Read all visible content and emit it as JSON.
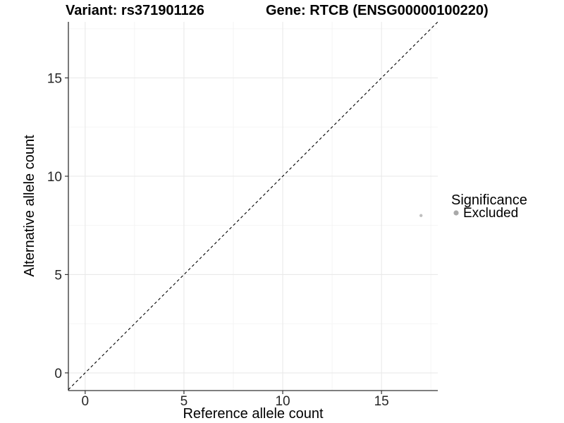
{
  "chart_data": {
    "type": "scatter",
    "title_left": "Variant: rs371901126",
    "title_right": "Gene: RTCB (ENSG00000100220)",
    "xlabel": "Reference allele count",
    "ylabel": "Alternative allele count",
    "xlim": [
      -0.85,
      17.85
    ],
    "ylim": [
      -0.9,
      17.85
    ],
    "x_ticks": [
      0,
      5,
      10,
      15
    ],
    "y_ticks": [
      0,
      5,
      10,
      15
    ],
    "x_minor_ticks": [
      2.5,
      7.5,
      12.5,
      17.5
    ],
    "y_minor_ticks": [
      2.5,
      7.5,
      12.5,
      17.5
    ],
    "grid": true,
    "abline": {
      "slope": 1,
      "intercept": 0,
      "linetype": "dashed",
      "color": "#000000"
    },
    "series": [
      {
        "name": "Excluded",
        "color": "#bfbfbf",
        "points": [
          {
            "x": 17,
            "y": 8
          }
        ]
      }
    ],
    "legend": {
      "position": "right",
      "title": "Significance",
      "items": [
        {
          "label": "Excluded",
          "color": "#a9a9a9",
          "marker": "circle"
        }
      ]
    }
  },
  "style": {
    "background": "#ffffff",
    "axis_line_color": "#333333",
    "tick_color": "#333333",
    "grid_major_color": "#e9e9e9",
    "grid_minor_color": "#f3f3f3",
    "title_color": "#000000",
    "tick_label_color": "#262626"
  }
}
